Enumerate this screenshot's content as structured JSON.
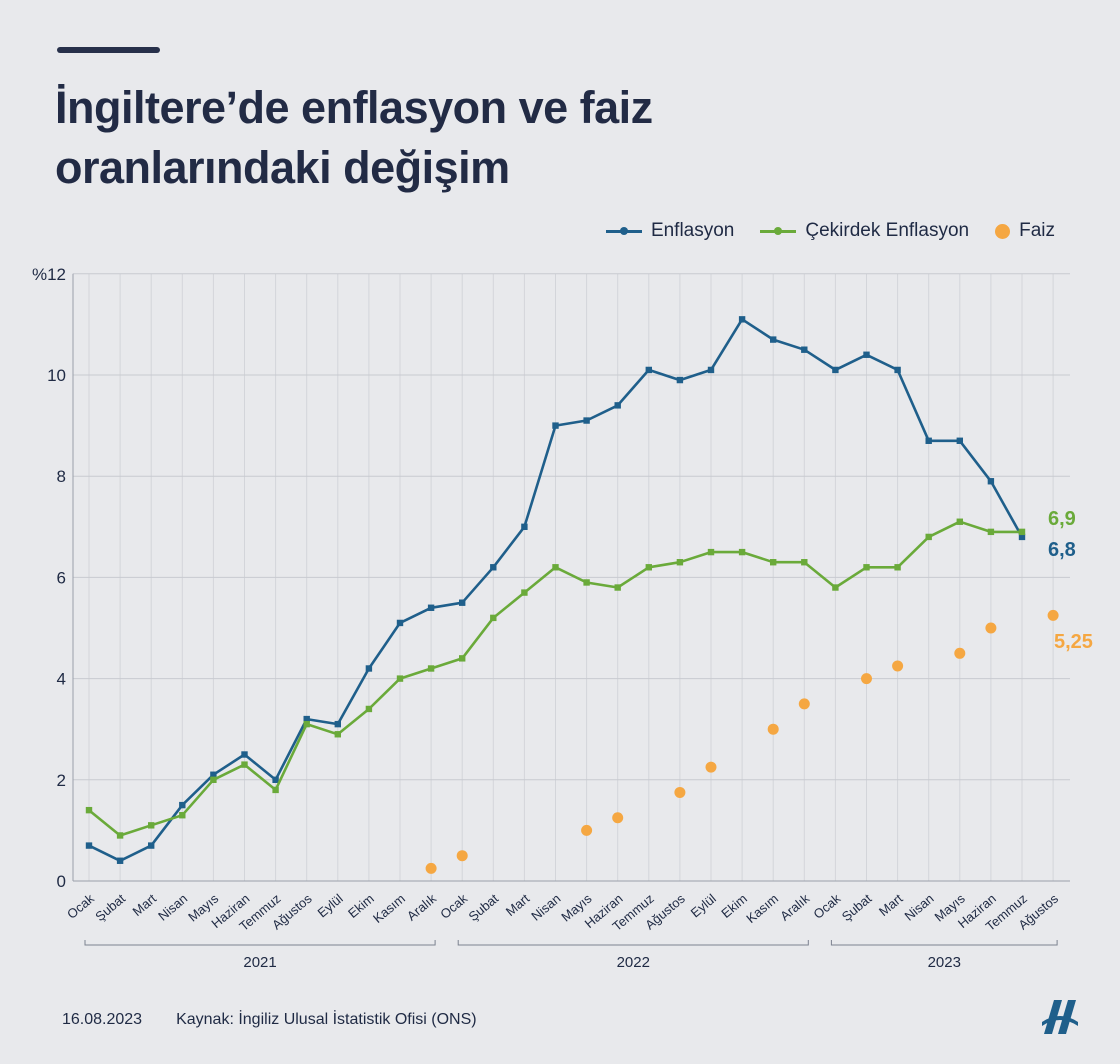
{
  "title_lines": [
    "İngiltere’de enflasyon ve faiz",
    "oranlarındaki değişim"
  ],
  "legend": {
    "inflation": "Enflasyon",
    "core": "Çekirdek Enflasyon",
    "rate": "Faiz"
  },
  "colors": {
    "inflation": "#1f5f8b",
    "core": "#6aaa3a",
    "rate": "#f5a742",
    "text": "#1f2a44"
  },
  "footer": {
    "date": "16.08.2023",
    "source": "Kaynak: İngiliz Ulusal İstatistik Ofisi (ONS)"
  },
  "logo_icon": "aa-logo-icon",
  "chart_data": {
    "type": "line",
    "ylim": [
      0,
      12
    ],
    "yticks": [
      "0",
      "2",
      "4",
      "6",
      "8",
      "10",
      "%12"
    ],
    "ytick_values": [
      0,
      2,
      4,
      6,
      8,
      10,
      12
    ],
    "categories": [
      "Ocak",
      "Şubat",
      "Mart",
      "Nisan",
      "Mayıs",
      "Haziran",
      "Temmuz",
      "Ağustos",
      "Eylül",
      "Ekim",
      "Kasım",
      "Aralık",
      "Ocak",
      "Şubat",
      "Mart",
      "Nisan",
      "Mayıs",
      "Haziran",
      "Temmuz",
      "Ağustos",
      "Eylül",
      "Ekim",
      "Kasım",
      "Aralık",
      "Ocak",
      "Şubat",
      "Mart",
      "Nisan",
      "Mayıs",
      "Haziran",
      "Temmuz",
      "Ağustos"
    ],
    "years": [
      {
        "label": "2021",
        "start": 0,
        "end": 11
      },
      {
        "label": "2022",
        "start": 12,
        "end": 23
      },
      {
        "label": "2023",
        "start": 24,
        "end": 31
      }
    ],
    "series": [
      {
        "name": "Enflasyon",
        "key": "inflation",
        "values": [
          0.7,
          0.4,
          0.7,
          1.5,
          2.1,
          2.5,
          2.0,
          3.2,
          3.1,
          4.2,
          5.1,
          5.4,
          5.5,
          6.2,
          7.0,
          9.0,
          9.1,
          9.4,
          10.1,
          9.9,
          10.1,
          11.1,
          10.7,
          10.5,
          10.1,
          10.4,
          10.1,
          8.7,
          8.7,
          7.9,
          6.8,
          null
        ]
      },
      {
        "name": "Çekirdek Enflasyon",
        "key": "core",
        "values": [
          1.4,
          0.9,
          1.1,
          1.3,
          2.0,
          2.3,
          1.8,
          3.1,
          2.9,
          3.4,
          4.0,
          4.2,
          4.4,
          5.2,
          5.7,
          6.2,
          5.9,
          5.8,
          6.2,
          6.3,
          6.5,
          6.5,
          6.3,
          6.3,
          5.8,
          6.2,
          6.2,
          6.8,
          7.1,
          6.9,
          6.9,
          null
        ]
      },
      {
        "name": "Faiz",
        "key": "rate",
        "values": [
          null,
          null,
          null,
          null,
          null,
          null,
          null,
          null,
          null,
          null,
          null,
          0.25,
          0.5,
          null,
          null,
          null,
          1.0,
          1.25,
          null,
          1.75,
          2.25,
          null,
          3.0,
          3.5,
          null,
          4.0,
          4.25,
          null,
          4.5,
          5.0,
          null,
          5.25
        ]
      }
    ],
    "end_labels": {
      "inflation": "6,8",
      "core": "6,9",
      "rate": "5,25"
    }
  }
}
